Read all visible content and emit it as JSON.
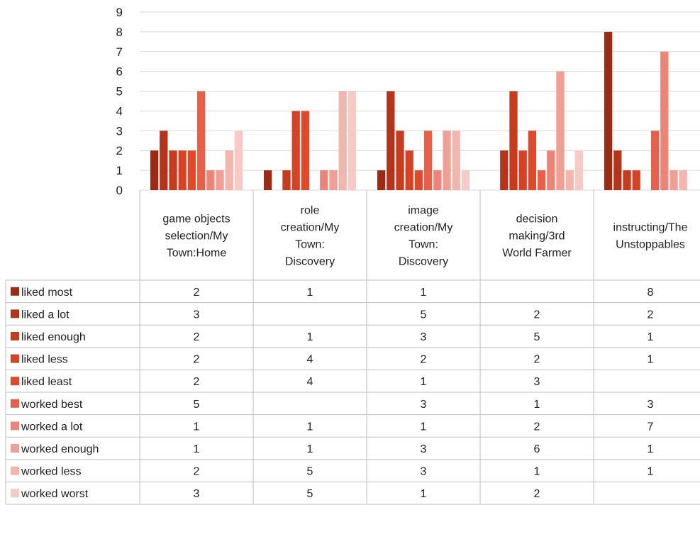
{
  "chart_data": {
    "type": "bar",
    "title": "",
    "xlabel": "",
    "ylabel": "",
    "ylim": [
      0,
      9
    ],
    "yticks": [
      0,
      1,
      2,
      3,
      4,
      5,
      6,
      7,
      8,
      9
    ],
    "grid": true,
    "legend": "data-table-left",
    "categories": [
      [
        "game objects",
        "selection/My",
        "Town:Home"
      ],
      [
        "role",
        "creation/My",
        "Town:",
        "Discovery"
      ],
      [
        "image",
        "creation/My",
        "Town:",
        "Discovery"
      ],
      [
        "decision",
        "making/3rd",
        "World Farmer"
      ],
      [
        "instructing/The",
        "Unstoppables"
      ]
    ],
    "series": [
      {
        "name": "liked most",
        "color": "#9c2b14",
        "values": [
          2,
          1,
          1,
          null,
          8
        ]
      },
      {
        "name": "liked a lot",
        "color": "#b3341a",
        "values": [
          3,
          null,
          5,
          2,
          2
        ]
      },
      {
        "name": "liked enough",
        "color": "#c73b1e",
        "values": [
          2,
          1,
          3,
          5,
          1
        ]
      },
      {
        "name": "liked less",
        "color": "#d64324",
        "values": [
          2,
          4,
          2,
          2,
          1
        ]
      },
      {
        "name": "liked least",
        "color": "#e04a2a",
        "values": [
          2,
          4,
          1,
          3,
          null
        ]
      },
      {
        "name": "worked best",
        "color": "#e8604a",
        "values": [
          5,
          null,
          3,
          1,
          3
        ]
      },
      {
        "name": "worked a lot",
        "color": "#ec8578",
        "values": [
          1,
          1,
          1,
          2,
          7
        ]
      },
      {
        "name": "worked enough",
        "color": "#efa095",
        "values": [
          1,
          1,
          3,
          6,
          1
        ]
      },
      {
        "name": "worked less",
        "color": "#f3b6ae",
        "values": [
          2,
          5,
          3,
          1,
          1
        ]
      },
      {
        "name": "worked worst",
        "color": "#f6cbc6",
        "values": [
          3,
          5,
          1,
          2,
          null
        ]
      }
    ]
  }
}
